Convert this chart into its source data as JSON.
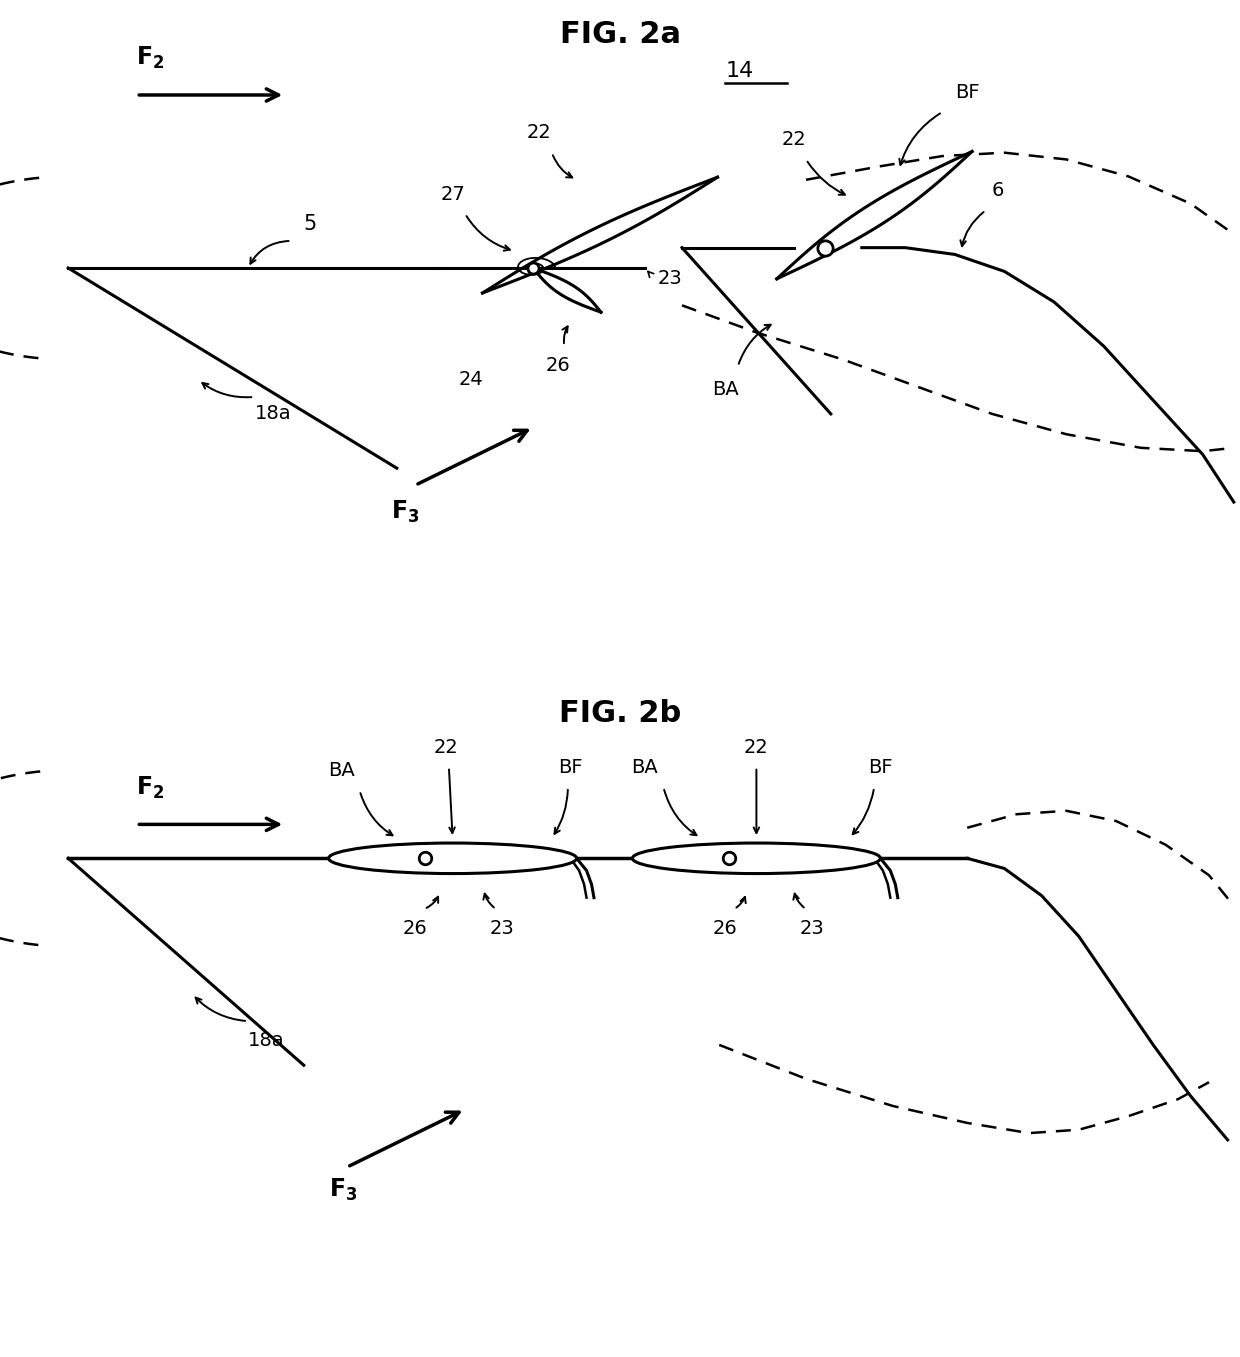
{
  "title_2a": "FIG. 2a",
  "title_2b": "FIG. 2b",
  "bg_color": "#ffffff",
  "line_color": "#000000",
  "lw_thick": 2.2,
  "lw_medium": 1.8,
  "lw_thin": 1.4
}
